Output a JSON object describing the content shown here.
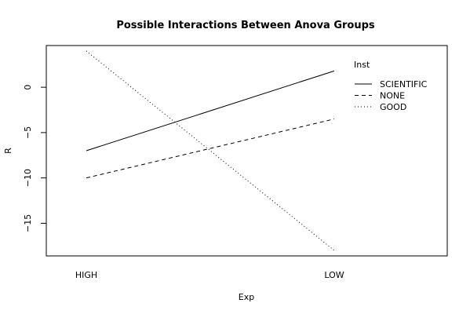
{
  "chart_data": {
    "type": "line",
    "title": "Possible Interactions Between Anova Groups",
    "xlabel": "Exp",
    "ylabel": "R",
    "categories": [
      "HIGH",
      "LOW"
    ],
    "y_ticks": [
      0,
      -5,
      -10,
      -15
    ],
    "ylim": [
      -18.6,
      4.6
    ],
    "legend": {
      "title": "Inst",
      "position": "top-right"
    },
    "series": [
      {
        "name": "SCIENTIFIC",
        "values": [
          -7.0,
          1.8
        ],
        "line_style": "solid"
      },
      {
        "name": "NONE",
        "values": [
          -10.0,
          -3.5
        ],
        "line_style": "dashed"
      },
      {
        "name": "GOOD",
        "values": [
          4.0,
          -18.0
        ],
        "line_style": "dotted"
      }
    ],
    "grid": false
  }
}
